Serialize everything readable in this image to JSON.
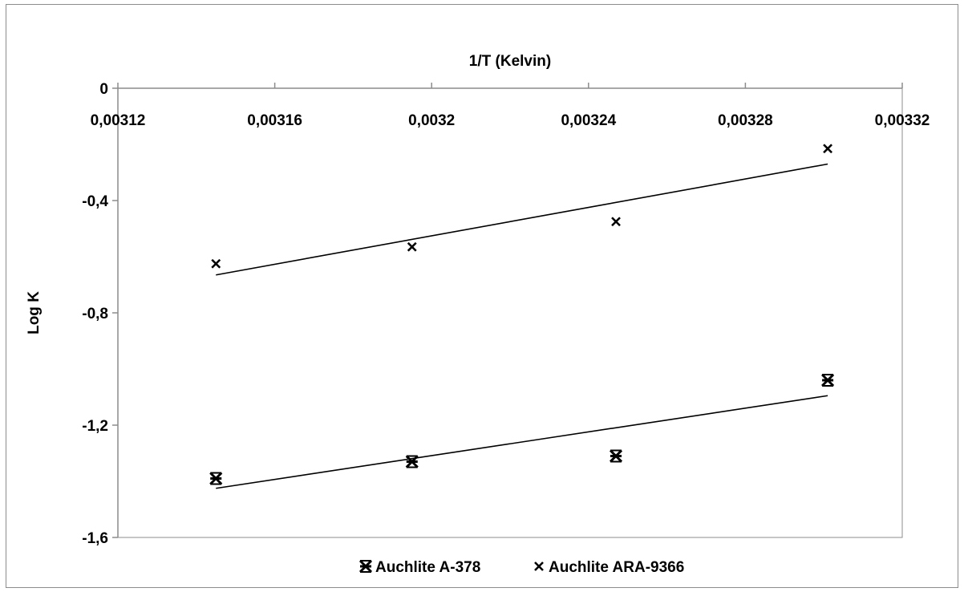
{
  "chart_data": {
    "type": "scatter",
    "xlabel": "1/T (Kelvin)",
    "ylabel": "Log K",
    "xlim": [
      0.00312,
      0.00332
    ],
    "ylim": [
      -1.6,
      0
    ],
    "x_ticks": [
      0.00312,
      0.00316,
      0.0032,
      0.00324,
      0.00328,
      0.00332
    ],
    "x_tick_labels": [
      "0,00312",
      "0,00316",
      "0,0032",
      "0,00324",
      "0,00328",
      "0,00332"
    ],
    "y_ticks": [
      0,
      -0.4,
      -0.8,
      -1.2,
      -1.6
    ],
    "y_tick_labels": [
      "0",
      "-0,4",
      "-0,8",
      "-1,2",
      "-1,6"
    ],
    "x_axis_position": "top",
    "grid": false,
    "legend_position": "bottom",
    "series": [
      {
        "name": "Auchlite A-378",
        "marker": "asterisk",
        "x": [
          0.003145,
          0.003195,
          0.003247,
          0.003301
        ],
        "y": [
          -1.39,
          -1.33,
          -1.31,
          -1.04
        ],
        "trendline": {
          "x": [
            0.003145,
            0.003301
          ],
          "y": [
            -1.425,
            -1.095
          ]
        }
      },
      {
        "name": "Auchlite ARA-9366",
        "marker": "x",
        "x": [
          0.003145,
          0.003195,
          0.003247,
          0.003301
        ],
        "y": [
          -0.625,
          -0.565,
          -0.475,
          -0.215
        ],
        "trendline": {
          "x": [
            0.003145,
            0.003301
          ],
          "y": [
            -0.665,
            -0.27
          ]
        }
      }
    ]
  }
}
